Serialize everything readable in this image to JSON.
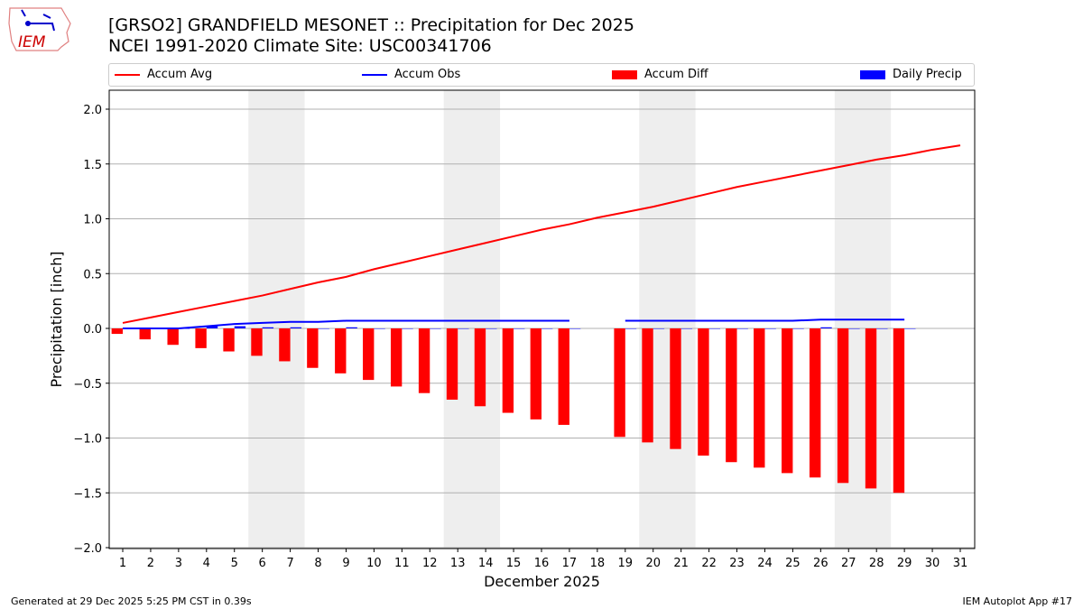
{
  "header": {
    "title": "[GRSO2] GRANDFIELD MESONET :: Precipitation for Dec 2025",
    "subtitle": "NCEI 1991-2020 Climate Site: USC00341706",
    "logo_text": "IEM"
  },
  "footer": {
    "left": "Generated at 29 Dec 2025 5:25 PM CST in 0.39s",
    "right": "IEM Autoplot App #17"
  },
  "chart_data": {
    "type": "bar",
    "xlabel": "December 2025",
    "ylabel": "Precipitation [inch]",
    "ylim": [
      -2.0,
      2.15
    ],
    "yticks": [
      -2.0,
      -1.5,
      -1.0,
      -0.5,
      0.0,
      0.5,
      1.0,
      1.5,
      2.0
    ],
    "ytick_labels": [
      "−2.0",
      "−1.5",
      "−1.0",
      "−0.5",
      "0.0",
      "0.5",
      "1.0",
      "1.5",
      "2.0"
    ],
    "x": [
      1,
      2,
      3,
      4,
      5,
      6,
      7,
      8,
      9,
      10,
      11,
      12,
      13,
      14,
      15,
      16,
      17,
      18,
      19,
      20,
      21,
      22,
      23,
      24,
      25,
      26,
      27,
      28,
      29,
      30,
      31
    ],
    "grid": "horizontal",
    "legend_placement": "top",
    "weekend_shading_days": [
      6,
      7,
      13,
      14,
      20,
      21,
      27,
      28
    ],
    "series": [
      {
        "name": "Accum Avg",
        "type": "line",
        "color": "#ff0000",
        "values": [
          0.05,
          0.1,
          0.15,
          0.2,
          0.25,
          0.3,
          0.36,
          0.42,
          0.47,
          0.54,
          0.6,
          0.66,
          0.72,
          0.78,
          0.84,
          0.9,
          0.95,
          1.01,
          1.06,
          1.11,
          1.17,
          1.23,
          1.29,
          1.34,
          1.39,
          1.44,
          1.49,
          1.54,
          1.58,
          1.63,
          1.67
        ]
      },
      {
        "name": "Accum Obs",
        "type": "line",
        "color": "#0000ff",
        "values": [
          0,
          0,
          0,
          0.02,
          0.04,
          0.05,
          0.06,
          0.06,
          0.07,
          0.07,
          0.07,
          0.07,
          0.07,
          0.07,
          0.07,
          0.07,
          0.07,
          null,
          0.07,
          0.07,
          0.07,
          0.07,
          0.07,
          0.07,
          0.07,
          0.08,
          0.08,
          0.08,
          0.08,
          null,
          null
        ]
      },
      {
        "name": "Accum Diff",
        "type": "bar",
        "color": "#ff0000",
        "values": [
          -0.05,
          -0.1,
          -0.15,
          -0.18,
          -0.21,
          -0.25,
          -0.3,
          -0.36,
          -0.41,
          -0.47,
          -0.53,
          -0.59,
          -0.65,
          -0.71,
          -0.77,
          -0.83,
          -0.88,
          null,
          -0.99,
          -1.04,
          -1.1,
          -1.16,
          -1.22,
          -1.27,
          -1.32,
          -1.36,
          -1.41,
          -1.46,
          -1.5,
          null,
          null
        ]
      },
      {
        "name": "Daily Precip",
        "type": "bar",
        "color": "#0000ff",
        "values": [
          0,
          0,
          0,
          0.02,
          0.02,
          0.01,
          0.01,
          0,
          0.01,
          0,
          0,
          0,
          0,
          0,
          0,
          0,
          0,
          null,
          0,
          0,
          0,
          0,
          0,
          0,
          0,
          0.01,
          0,
          0,
          0,
          null,
          null
        ]
      }
    ]
  }
}
